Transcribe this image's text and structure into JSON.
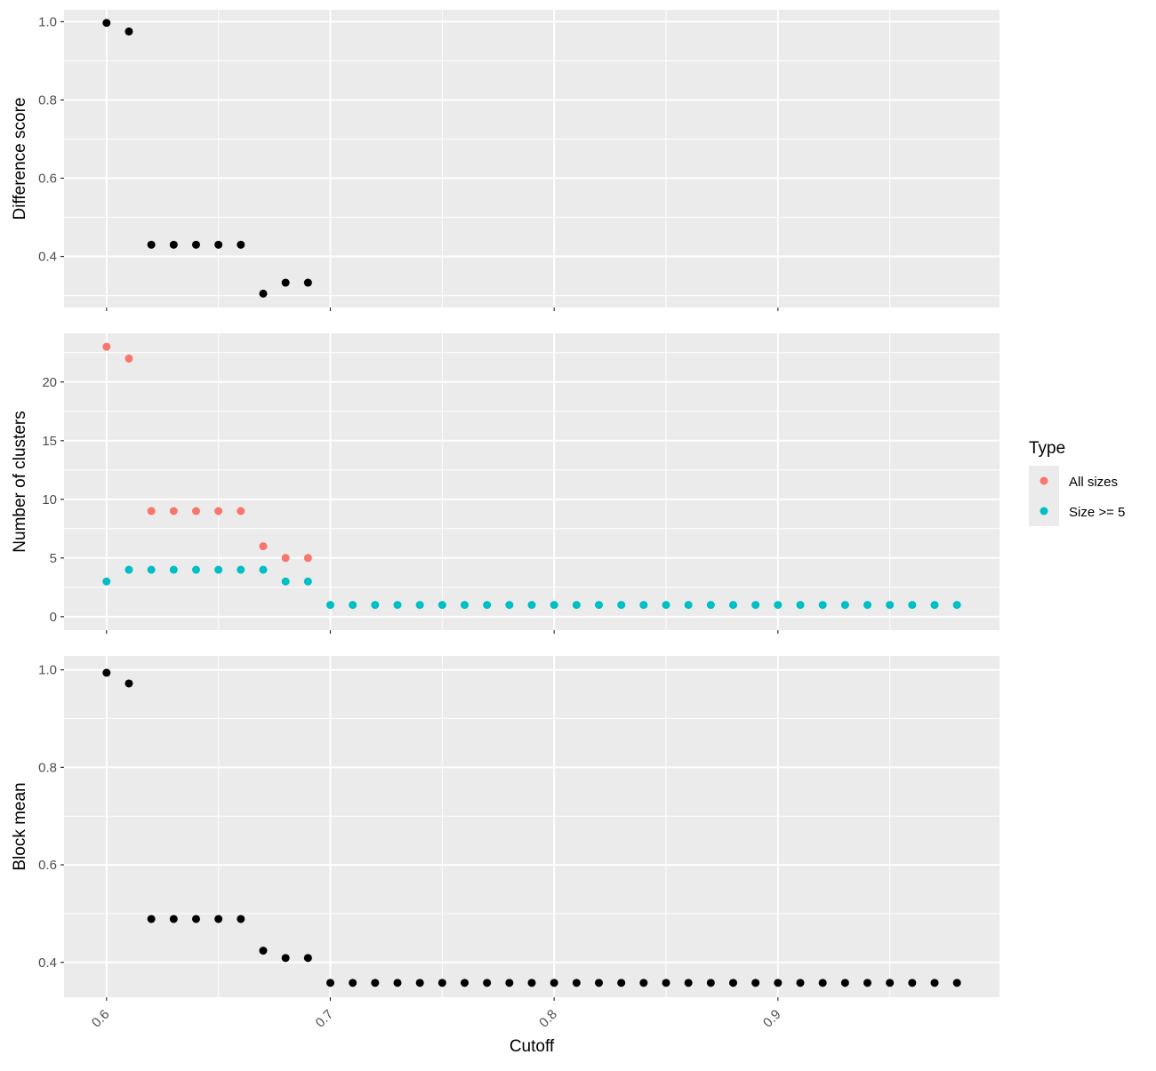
{
  "chart_data": {
    "type": "scatter",
    "xlabel": "Cutoff",
    "x_ticks": [
      "0.6",
      "0.7",
      "0.8",
      "0.9"
    ],
    "xlim": [
      0.581,
      0.999
    ],
    "colors": {
      "all_sizes": "#F8766D",
      "size_ge_5": "#00BFC4",
      "black": "#000000",
      "panel_bg": "#EBEBEB",
      "grid": "#FFFFFF"
    },
    "legend": {
      "title": "Type",
      "placement": "right",
      "entries": [
        {
          "label": "All sizes",
          "color": "#F8766D"
        },
        {
          "label": "Size >= 5",
          "color": "#00BFC4"
        }
      ]
    },
    "panels": [
      {
        "id": "difference",
        "ylabel": "Difference score",
        "ylim": [
          0.2695,
          1.0305
        ],
        "y_ticks": [
          0.4,
          0.6,
          0.8,
          1.0
        ],
        "y_tick_labels": [
          "0.4",
          "0.6",
          "0.8",
          "1.0"
        ],
        "series": [
          {
            "color": "#000000",
            "x": [
              0.6,
              0.61,
              0.62,
              0.63,
              0.64,
              0.65,
              0.66,
              0.67,
              0.68,
              0.69
            ],
            "y": [
              0.997,
              0.975,
              0.43,
              0.43,
              0.43,
              0.43,
              0.43,
              0.305,
              0.333,
              0.333
            ]
          }
        ]
      },
      {
        "id": "clusters",
        "ylabel": "Number of clusters",
        "ylim": [
          -1.15,
          24.15
        ],
        "y_ticks": [
          0,
          5,
          10,
          15,
          20
        ],
        "y_tick_labels": [
          "0",
          "5",
          "10",
          "15",
          "20"
        ],
        "series": [
          {
            "name": "All sizes",
            "color": "#F8766D",
            "x": [
              0.6,
              0.61,
              0.62,
              0.63,
              0.64,
              0.65,
              0.66,
              0.67,
              0.68,
              0.69
            ],
            "y": [
              23,
              22,
              9,
              9,
              9,
              9,
              9,
              6,
              5,
              5
            ]
          },
          {
            "name": "Size >= 5",
            "color": "#00BFC4",
            "x": [
              0.6,
              0.61,
              0.62,
              0.63,
              0.64,
              0.65,
              0.66,
              0.67,
              0.68,
              0.69,
              0.7,
              0.71,
              0.72,
              0.73,
              0.74,
              0.75,
              0.76,
              0.77,
              0.78,
              0.79,
              0.8,
              0.81,
              0.82,
              0.83,
              0.84,
              0.85,
              0.86,
              0.87,
              0.88,
              0.89,
              0.9,
              0.91,
              0.92,
              0.93,
              0.94,
              0.95,
              0.96,
              0.97,
              0.98
            ],
            "y": [
              3,
              4,
              4,
              4,
              4,
              4,
              4,
              4,
              3,
              3,
              1,
              1,
              1,
              1,
              1,
              1,
              1,
              1,
              1,
              1,
              1,
              1,
              1,
              1,
              1,
              1,
              1,
              1,
              1,
              1,
              1,
              1,
              1,
              1,
              1,
              1,
              1,
              1,
              1
            ]
          }
        ]
      },
      {
        "id": "block",
        "ylabel": "Block mean",
        "ylim": [
          0.3285,
          1.0285
        ],
        "y_ticks": [
          0.4,
          0.6,
          0.8,
          1.0
        ],
        "y_tick_labels": [
          "0.4",
          "0.6",
          "0.8",
          "1.0"
        ],
        "series": [
          {
            "color": "#000000",
            "x": [
              0.6,
              0.61,
              0.62,
              0.63,
              0.64,
              0.65,
              0.66,
              0.67,
              0.68,
              0.69,
              0.7,
              0.71,
              0.72,
              0.73,
              0.74,
              0.75,
              0.76,
              0.77,
              0.78,
              0.79,
              0.8,
              0.81,
              0.82,
              0.83,
              0.84,
              0.85,
              0.86,
              0.87,
              0.88,
              0.89,
              0.9,
              0.91,
              0.92,
              0.93,
              0.94,
              0.95,
              0.96,
              0.97,
              0.98
            ],
            "y": [
              0.994,
              0.972,
              0.489,
              0.489,
              0.489,
              0.489,
              0.489,
              0.424,
              0.409,
              0.409,
              0.358,
              0.358,
              0.358,
              0.358,
              0.358,
              0.358,
              0.358,
              0.358,
              0.358,
              0.358,
              0.358,
              0.358,
              0.358,
              0.358,
              0.358,
              0.358,
              0.358,
              0.358,
              0.358,
              0.358,
              0.358,
              0.358,
              0.358,
              0.358,
              0.358,
              0.358,
              0.358,
              0.358,
              0.358
            ]
          }
        ]
      }
    ]
  }
}
